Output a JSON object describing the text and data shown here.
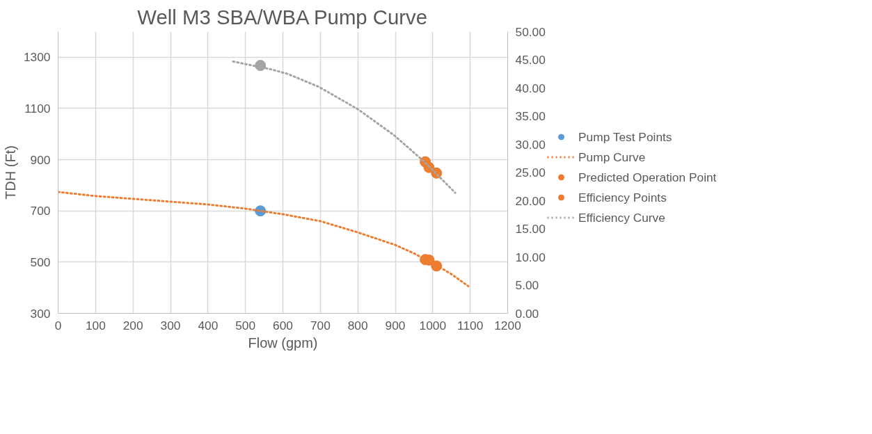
{
  "chart_data": {
    "type": "scatter",
    "title": "Well M3 SBA/WBA Pump Curve",
    "xlabel": "Flow (gpm)",
    "ylabel": "TDH (Ft)",
    "xlim": [
      0,
      1200
    ],
    "xticks": [
      0,
      100,
      200,
      300,
      400,
      500,
      600,
      700,
      800,
      900,
      1000,
      1100,
      1200
    ],
    "ylim": [
      300,
      1400
    ],
    "yticks": [
      300,
      500,
      700,
      900,
      1100,
      1300
    ],
    "y2lim": [
      0,
      50
    ],
    "y2ticks": [
      {
        "value": 0,
        "label": "0.00"
      },
      {
        "value": 5,
        "label": "5.00"
      },
      {
        "value": 10,
        "label": "10.00"
      },
      {
        "value": 15,
        "label": "15.00"
      },
      {
        "value": 20,
        "label": "20.00"
      },
      {
        "value": 25,
        "label": "25.00"
      },
      {
        "value": 30,
        "label": "30.00"
      },
      {
        "value": 35,
        "label": "35.00"
      },
      {
        "value": 40,
        "label": "40.00"
      },
      {
        "value": 45,
        "label": "45.00"
      },
      {
        "value": 50,
        "label": "50.00"
      }
    ],
    "grid": true,
    "legend": "right",
    "marker": "circle",
    "series": [
      {
        "name": "Pump Test Points",
        "color": "#5b9bd5",
        "x": [
          540
        ],
        "values": [
          700
        ]
      },
      {
        "name": "Pump Curve",
        "type": "line",
        "marker": "none",
        "line_style": "dotted",
        "color": "#ed7d31",
        "x": [
          0,
          100,
          200,
          300,
          400,
          500,
          540,
          600,
          700,
          800,
          900,
          950,
          1000,
          1050,
          1095
        ],
        "values": [
          774,
          758,
          747,
          736,
          725,
          709,
          700,
          687,
          660,
          616,
          567,
          534,
          496,
          453,
          406
        ]
      },
      {
        "name": "Predicted Operation Point",
        "color": "#ed7d31",
        "x": [
          980,
          990,
          1010
        ],
        "values": [
          510,
          508,
          485
        ]
      },
      {
        "name": "Efficiency Points",
        "axis": "y2",
        "color": "#ed7d31",
        "x": [
          980,
          990,
          1010
        ],
        "values": [
          26.9,
          25.9,
          24.9
        ]
      },
      {
        "axis": "y2",
        "color": "#a5a5a5",
        "x": [
          540
        ],
        "values": [
          44
        ]
      },
      {
        "name": "Efficiency Curve",
        "type": "line",
        "marker": "none",
        "line_style": "dotted",
        "axis": "y2",
        "color": "#a5a5a5",
        "x": [
          467,
          569,
          613,
          696,
          801,
          897,
          976,
          1060
        ],
        "values": [
          44.7,
          43.3,
          42.5,
          40.2,
          36.2,
          31.6,
          27.0,
          21.4
        ]
      }
    ]
  }
}
